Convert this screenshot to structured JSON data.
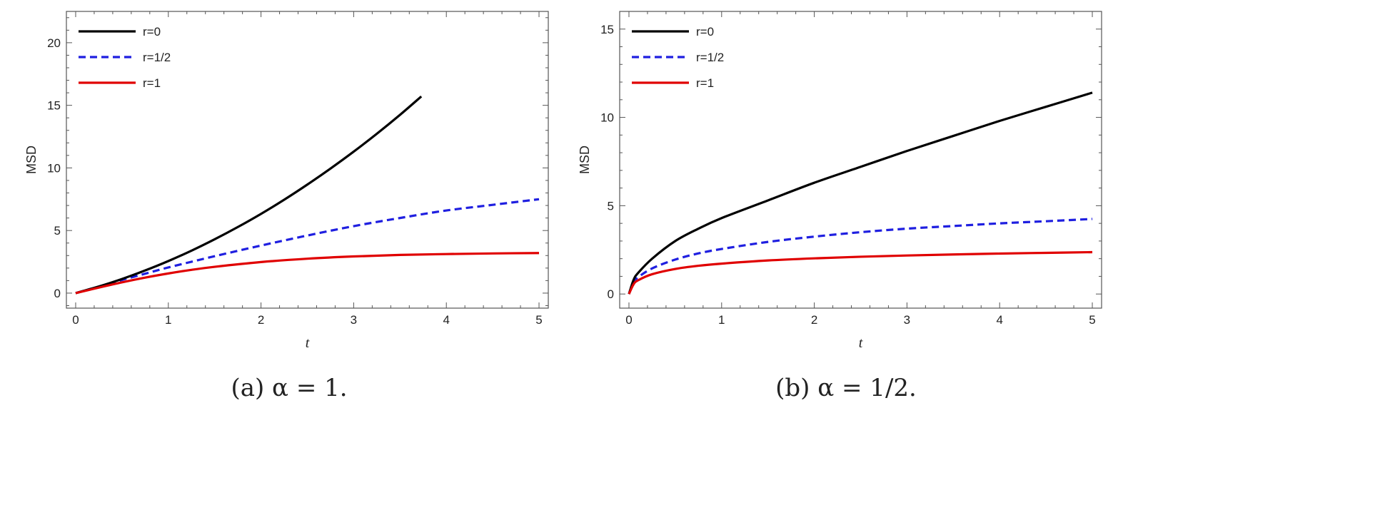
{
  "chart_data": [
    {
      "type": "line",
      "caption": "(a) α = 1.",
      "xlabel": "t",
      "ylabel": "MSD",
      "xlim": [
        -0.1,
        5.1
      ],
      "ylim": [
        -1.2,
        22.5
      ],
      "xticks": [
        0,
        1,
        2,
        3,
        4,
        5
      ],
      "yticks": [
        0,
        5,
        10,
        15,
        20
      ],
      "legend_position": "top-left",
      "series": [
        {
          "name": "r=0",
          "color": "#000000",
          "dash": "solid",
          "x": [
            0,
            0.25,
            0.5,
            0.75,
            1,
            1.25,
            1.5,
            1.75,
            2,
            2.25,
            2.5,
            2.75,
            3,
            3.25,
            3.5,
            3.73
          ],
          "y": [
            0,
            0.53,
            1.13,
            1.81,
            2.56,
            3.39,
            4.3,
            5.28,
            6.33,
            7.46,
            8.67,
            9.95,
            11.3,
            12.73,
            14.24,
            15.71
          ]
        },
        {
          "name": "r=1/2",
          "color": "#1f1fe0",
          "dash": "dashed",
          "x": [
            0,
            0.25,
            0.5,
            0.75,
            1,
            1.5,
            2,
            2.5,
            3,
            3.5,
            4,
            4.5,
            5
          ],
          "y": [
            0,
            0.52,
            1.05,
            1.55,
            2.05,
            2.95,
            3.8,
            4.6,
            5.35,
            6.0,
            6.6,
            7.05,
            7.5
          ]
        },
        {
          "name": "r=1",
          "color": "#e00000",
          "dash": "solid",
          "x": [
            0,
            0.25,
            0.5,
            0.75,
            1,
            1.25,
            1.5,
            2,
            2.5,
            3,
            3.5,
            4,
            4.5,
            5
          ],
          "y": [
            0,
            0.44,
            0.86,
            1.24,
            1.57,
            1.86,
            2.1,
            2.48,
            2.75,
            2.93,
            3.05,
            3.12,
            3.17,
            3.2
          ]
        }
      ]
    },
    {
      "type": "line",
      "caption": "(b) α = 1/2.",
      "xlabel": "t",
      "ylabel": "MSD",
      "xlim": [
        -0.1,
        5.1
      ],
      "ylim": [
        -0.8,
        16.0
      ],
      "xticks": [
        0,
        1,
        2,
        3,
        4,
        5
      ],
      "yticks": [
        0,
        5,
        10,
        15
      ],
      "legend_position": "top-left",
      "series": [
        {
          "name": "r=0",
          "color": "#000000",
          "dash": "solid",
          "x": [
            0,
            0.05,
            0.1,
            0.25,
            0.5,
            0.75,
            1,
            1.5,
            2,
            2.5,
            3,
            3.5,
            4,
            4.5,
            5
          ],
          "y": [
            0,
            0.8,
            1.2,
            2.0,
            3.0,
            3.7,
            4.3,
            5.3,
            6.3,
            7.2,
            8.1,
            8.95,
            9.8,
            10.6,
            11.4
          ]
        },
        {
          "name": "r=1/2",
          "color": "#1f1fe0",
          "dash": "dashed",
          "x": [
            0,
            0.05,
            0.1,
            0.25,
            0.5,
            0.75,
            1,
            1.5,
            2,
            2.5,
            3,
            3.5,
            4,
            4.5,
            5
          ],
          "y": [
            0,
            0.65,
            0.95,
            1.45,
            1.95,
            2.3,
            2.55,
            2.95,
            3.25,
            3.5,
            3.7,
            3.85,
            4.0,
            4.12,
            4.25
          ]
        },
        {
          "name": "r=1",
          "color": "#e00000",
          "dash": "solid",
          "x": [
            0,
            0.05,
            0.1,
            0.25,
            0.5,
            0.75,
            1,
            1.5,
            2,
            2.5,
            3,
            3.5,
            4,
            4.5,
            5
          ],
          "y": [
            0,
            0.55,
            0.78,
            1.12,
            1.42,
            1.6,
            1.72,
            1.9,
            2.02,
            2.11,
            2.18,
            2.24,
            2.29,
            2.33,
            2.37
          ]
        }
      ]
    }
  ]
}
